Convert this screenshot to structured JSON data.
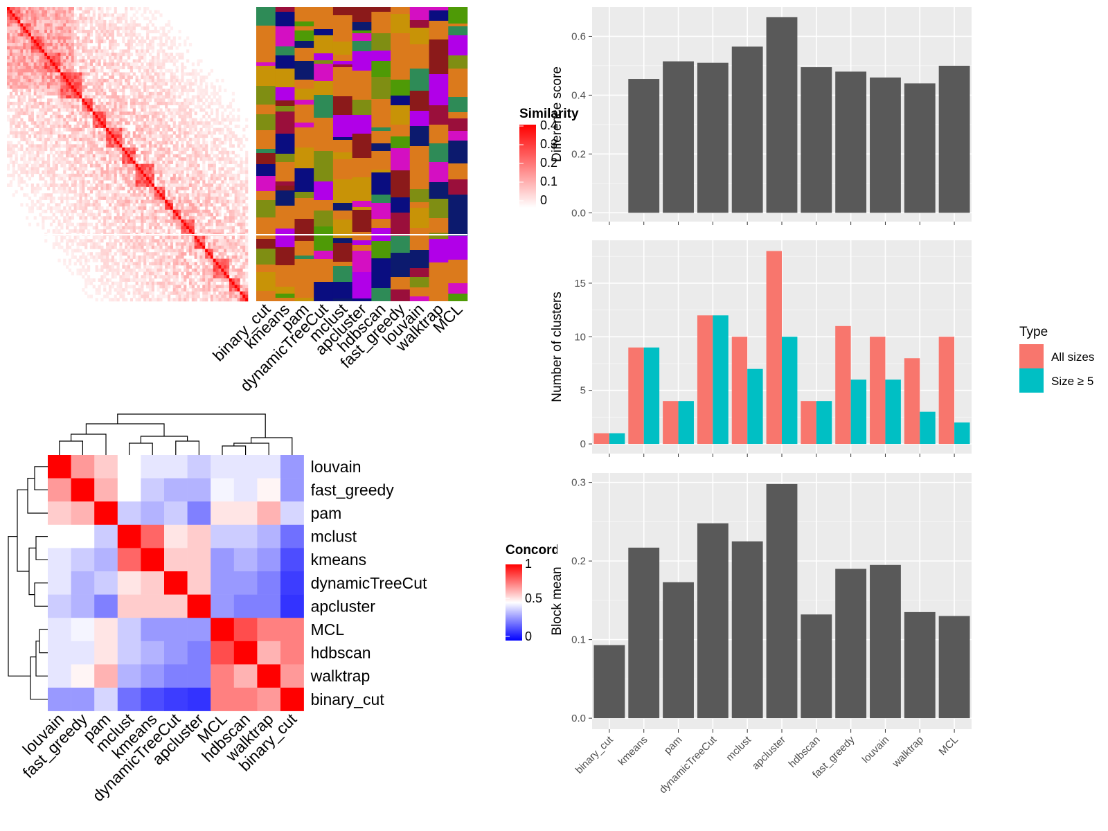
{
  "chart_data": [
    {
      "type": "heatmap",
      "title": "",
      "legend": {
        "title": "Similarity",
        "ticks": [
          "0.4",
          "0.3",
          "0.2",
          "0.1",
          "0"
        ],
        "colors": [
          "#ffffff",
          "#ff0000"
        ]
      },
      "method_labels": [
        "binary_cut",
        "kmeans",
        "pam",
        "dynamicTreeCut",
        "mclust",
        "apcluster",
        "hdbscan",
        "fast_greedy",
        "louvain",
        "walktrap",
        "MCL"
      ],
      "diagonal_blocks": [
        5,
        4,
        5,
        6,
        8,
        4,
        5,
        6,
        5,
        7,
        4,
        3,
        3,
        5,
        4,
        3,
        6,
        4,
        5,
        4,
        5,
        3,
        5
      ]
    },
    {
      "type": "heatmap",
      "legend": {
        "title": "Concordance",
        "ticks": [
          "1",
          "0.5",
          "0"
        ],
        "colors": [
          "#0000ff",
          "#ffffff",
          "#ff0000"
        ]
      },
      "labels": [
        "louvain",
        "fast_greedy",
        "pam",
        "mclust",
        "kmeans",
        "dynamicTreeCut",
        "apcluster",
        "MCL",
        "hdbscan",
        "walktrap",
        "binary_cut"
      ],
      "values": [
        [
          1.0,
          0.7,
          0.6,
          0.5,
          0.45,
          0.45,
          0.4,
          0.45,
          0.45,
          0.45,
          0.3
        ],
        [
          0.7,
          1.0,
          0.65,
          0.5,
          0.4,
          0.35,
          0.35,
          0.48,
          0.45,
          0.52,
          0.3
        ],
        [
          0.6,
          0.65,
          1.0,
          0.4,
          0.35,
          0.4,
          0.25,
          0.55,
          0.55,
          0.65,
          0.42
        ],
        [
          0.5,
          0.5,
          0.4,
          1.0,
          0.8,
          0.55,
          0.6,
          0.4,
          0.4,
          0.35,
          0.22
        ],
        [
          0.45,
          0.4,
          0.35,
          0.8,
          1.0,
          0.6,
          0.6,
          0.3,
          0.35,
          0.3,
          0.15
        ],
        [
          0.45,
          0.35,
          0.4,
          0.55,
          0.6,
          1.0,
          0.6,
          0.3,
          0.3,
          0.25,
          0.12
        ],
        [
          0.4,
          0.35,
          0.25,
          0.6,
          0.6,
          0.6,
          1.0,
          0.3,
          0.25,
          0.25,
          0.1
        ],
        [
          0.45,
          0.48,
          0.55,
          0.4,
          0.3,
          0.3,
          0.3,
          1.0,
          0.85,
          0.75,
          0.75
        ],
        [
          0.45,
          0.45,
          0.55,
          0.4,
          0.35,
          0.3,
          0.25,
          0.85,
          1.0,
          0.65,
          0.75
        ],
        [
          0.45,
          0.52,
          0.65,
          0.35,
          0.3,
          0.25,
          0.25,
          0.75,
          0.65,
          1.0,
          0.7
        ],
        [
          0.3,
          0.3,
          0.42,
          0.22,
          0.15,
          0.12,
          0.1,
          0.75,
          0.75,
          0.7,
          1.0
        ]
      ]
    },
    {
      "type": "bar",
      "categories": [
        "binary_cut",
        "kmeans",
        "pam",
        "dynamicTreeCut",
        "mclust",
        "apcluster",
        "hdbscan",
        "fast_greedy",
        "louvain",
        "walktrap",
        "MCL"
      ],
      "values": [
        0.0,
        0.455,
        0.515,
        0.51,
        0.565,
        0.665,
        0.495,
        0.48,
        0.46,
        0.44,
        0.5
      ],
      "xlabel": "",
      "ylabel": "Difference score",
      "ylim": [
        -0.03,
        0.7
      ],
      "yticks": [
        "0.0",
        "0.2",
        "0.4",
        "0.6"
      ],
      "grid": true,
      "bar_color": "#595959"
    },
    {
      "type": "bar",
      "categories": [
        "binary_cut",
        "kmeans",
        "pam",
        "dynamicTreeCut",
        "mclust",
        "apcluster",
        "hdbscan",
        "fast_greedy",
        "louvain",
        "walktrap",
        "MCL"
      ],
      "series": [
        {
          "name": "All sizes",
          "values": [
            1,
            9,
            4,
            12,
            10,
            18,
            4,
            11,
            10,
            8,
            10
          ],
          "color": "#F8766D"
        },
        {
          "name": "Size ≥ 5",
          "values": [
            1,
            9,
            4,
            12,
            7,
            10,
            4,
            6,
            6,
            3,
            2
          ],
          "color": "#00BFC4"
        }
      ],
      "ylabel": "Number of clusters",
      "ylim": [
        -0.9,
        19
      ],
      "yticks": [
        "0",
        "5",
        "10",
        "15"
      ],
      "grid": true,
      "legend": {
        "title": "Type",
        "position": "right"
      }
    },
    {
      "type": "bar",
      "categories": [
        "binary_cut",
        "kmeans",
        "pam",
        "dynamicTreeCut",
        "mclust",
        "apcluster",
        "hdbscan",
        "fast_greedy",
        "louvain",
        "walktrap",
        "MCL"
      ],
      "values": [
        0.093,
        0.217,
        0.173,
        0.248,
        0.225,
        0.298,
        0.132,
        0.19,
        0.195,
        0.135,
        0.13
      ],
      "ylabel": "Block mean",
      "ylim": [
        -0.014,
        0.312
      ],
      "yticks": [
        "0.0",
        "0.1",
        "0.2",
        "0.3"
      ],
      "grid": true,
      "bar_color": "#595959"
    }
  ]
}
